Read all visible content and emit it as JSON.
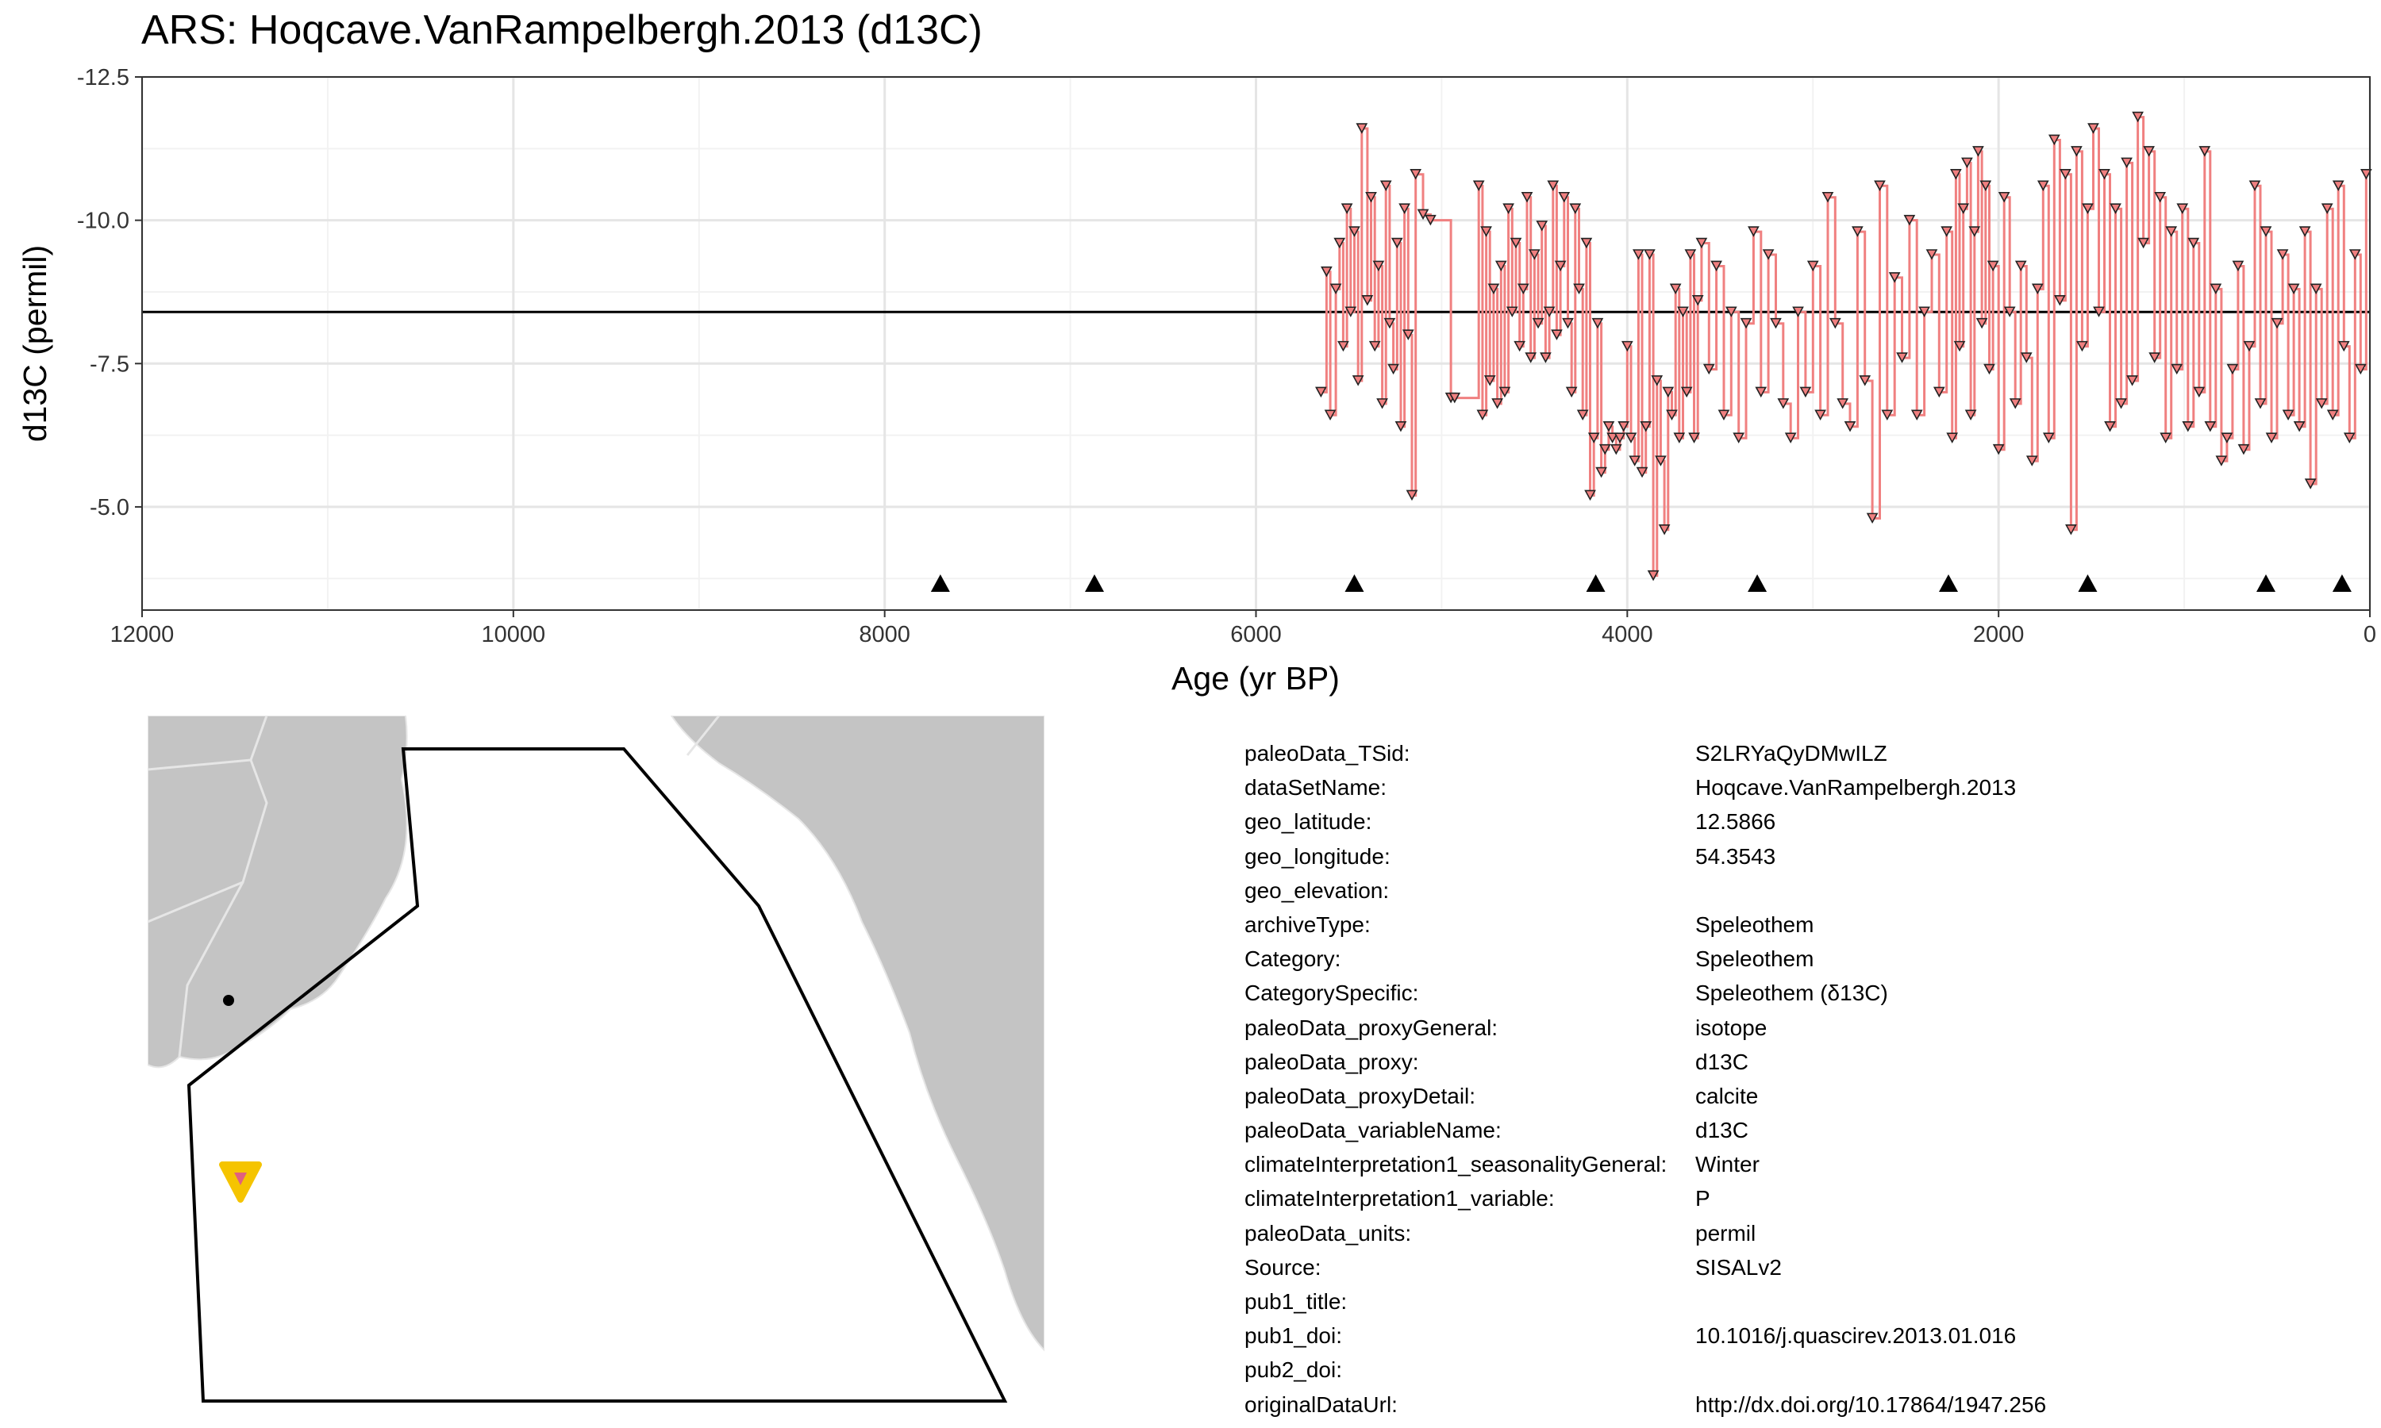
{
  "title": "ARS: Hoqcave.VanRampelbergh.2013 (d13C)",
  "chart_data": {
    "type": "line",
    "title": "ARS: Hoqcave.VanRampelbergh.2013 (d13C)",
    "xlabel": "Age (yr BP)",
    "ylabel": "d13C (permil)",
    "x_reversed": true,
    "y_reversed": true,
    "xlim": [
      12000,
      0
    ],
    "ylim": [
      -12.5,
      -3.2
    ],
    "x_ticks": [
      12000,
      10000,
      8000,
      6000,
      4000,
      2000,
      0
    ],
    "x_tick_labels": [
      "12000",
      "10000",
      "8000",
      "6000",
      "4000",
      "2000",
      "0"
    ],
    "y_ticks": [
      -12.5,
      -10.0,
      -7.5,
      -5.0
    ],
    "y_tick_labels": [
      "-12.5",
      "-10.0",
      "-7.5",
      "-5.0"
    ],
    "grid": true,
    "line_color": "#F08080",
    "marker": "triangle-down",
    "reference_line_y": -8.4,
    "chron_markers_x": [
      7700,
      6870,
      5470,
      4170,
      3300,
      2270,
      1520,
      560,
      150
    ],
    "series": [
      {
        "x": [
          5650,
          5620,
          5600,
          5570,
          5550,
          5530,
          5510,
          5490,
          5470,
          5450,
          5430,
          5400,
          5380,
          5360,
          5340,
          5320,
          5300,
          5280,
          5260,
          5240,
          5220,
          5200,
          5180,
          5160,
          5140,
          5100,
          5060,
          4950,
          4930,
          4800,
          4780,
          4760,
          4740,
          4720,
          4700,
          4680,
          4660,
          4640,
          4620,
          4600,
          4580,
          4560,
          4540,
          4520,
          4500,
          4480,
          4460,
          4440,
          4420,
          4400,
          4380,
          4360,
          4340,
          4320,
          4300,
          4280,
          4260,
          4240,
          4220,
          4200,
          4180,
          4160,
          4140,
          4120,
          4100,
          4080,
          4060,
          4040,
          4020,
          4000,
          3980,
          3960,
          3940,
          3920,
          3900,
          3880,
          3860,
          3840,
          3820,
          3800,
          3780,
          3760,
          3740,
          3720,
          3700,
          3680,
          3660,
          3640,
          3620,
          3600,
          3560,
          3520,
          3480,
          3440,
          3400,
          3360,
          3320,
          3280,
          3240,
          3200,
          3160,
          3120,
          3080,
          3040,
          3000,
          2960,
          2920,
          2880,
          2840,
          2800,
          2760,
          2720,
          2680,
          2640,
          2600,
          2560,
          2520,
          2480,
          2440,
          2400,
          2360,
          2320,
          2280,
          2250,
          2230,
          2210,
          2190,
          2170,
          2150,
          2130,
          2110,
          2090,
          2070,
          2050,
          2030,
          2000,
          1970,
          1940,
          1910,
          1880,
          1850,
          1820,
          1790,
          1760,
          1730,
          1700,
          1670,
          1640,
          1610,
          1580,
          1550,
          1520,
          1490,
          1460,
          1430,
          1400,
          1370,
          1340,
          1310,
          1280,
          1250,
          1220,
          1190,
          1160,
          1130,
          1100,
          1070,
          1040,
          1010,
          980,
          950,
          920,
          890,
          860,
          830,
          800,
          770,
          740,
          710,
          680,
          650,
          620,
          590,
          560,
          530,
          500,
          470,
          440,
          410,
          380,
          350,
          320,
          290,
          260,
          230,
          200,
          170,
          140,
          110,
          80,
          50,
          20
        ],
        "y": [
          -7.0,
          -9.1,
          -6.6,
          -8.8,
          -9.6,
          -7.8,
          -10.2,
          -8.4,
          -9.8,
          -7.2,
          -11.6,
          -8.6,
          -10.4,
          -7.8,
          -9.2,
          -6.8,
          -10.6,
          -8.2,
          -7.4,
          -9.6,
          -6.4,
          -10.2,
          -8.0,
          -5.2,
          -10.8,
          -10.1,
          -10.0,
          -6.9,
          -6.9,
          -10.6,
          -6.6,
          -9.8,
          -7.2,
          -8.8,
          -6.8,
          -9.2,
          -7.0,
          -10.2,
          -8.4,
          -9.6,
          -7.8,
          -8.8,
          -10.4,
          -7.6,
          -9.4,
          -8.2,
          -9.9,
          -7.6,
          -8.4,
          -10.6,
          -8.0,
          -9.2,
          -10.4,
          -8.2,
          -7.0,
          -10.2,
          -8.8,
          -6.6,
          -9.6,
          -5.2,
          -6.2,
          -8.2,
          -5.6,
          -6.0,
          -6.4,
          -6.2,
          -6.0,
          -6.2,
          -6.4,
          -7.8,
          -6.2,
          -5.8,
          -9.4,
          -5.6,
          -6.4,
          -9.4,
          -3.8,
          -7.2,
          -5.8,
          -4.6,
          -7.0,
          -6.6,
          -8.8,
          -6.2,
          -8.4,
          -7.0,
          -9.4,
          -6.2,
          -8.6,
          -9.6,
          -7.4,
          -9.2,
          -6.6,
          -8.4,
          -6.2,
          -8.2,
          -9.8,
          -7.0,
          -9.4,
          -8.2,
          -6.8,
          -6.2,
          -8.4,
          -7.0,
          -9.2,
          -6.6,
          -10.4,
          -8.2,
          -6.8,
          -6.4,
          -9.8,
          -7.2,
          -4.8,
          -10.6,
          -6.6,
          -9.0,
          -7.6,
          -10.0,
          -6.6,
          -8.4,
          -9.4,
          -7.0,
          -9.8,
          -6.2,
          -10.8,
          -7.8,
          -10.2,
          -11.0,
          -6.6,
          -9.8,
          -11.2,
          -8.2,
          -10.6,
          -7.4,
          -9.2,
          -6.0,
          -10.4,
          -8.4,
          -6.8,
          -9.2,
          -7.6,
          -5.8,
          -8.8,
          -10.6,
          -6.2,
          -11.4,
          -8.6,
          -10.8,
          -4.6,
          -11.2,
          -7.8,
          -10.2,
          -11.6,
          -8.4,
          -10.8,
          -6.4,
          -10.2,
          -6.8,
          -11.0,
          -7.2,
          -11.8,
          -9.6,
          -11.2,
          -7.6,
          -10.4,
          -6.2,
          -9.8,
          -7.4,
          -10.2,
          -6.4,
          -9.6,
          -7.0,
          -11.2,
          -6.4,
          -8.8,
          -5.8,
          -6.2,
          -7.4,
          -9.2,
          -6.0,
          -7.8,
          -10.6,
          -6.8,
          -9.8,
          -6.2,
          -8.2,
          -9.4,
          -6.6,
          -8.8,
          -6.4,
          -9.8,
          -5.4,
          -8.8,
          -6.8,
          -10.2,
          -6.6,
          -10.6,
          -7.8,
          -6.2,
          -9.4,
          -7.4,
          -10.8
        ]
      }
    ]
  },
  "metadata": [
    {
      "key": "paleoData_TSid:",
      "value": "S2LRYaQyDMwILZ"
    },
    {
      "key": "dataSetName:",
      "value": "Hoqcave.VanRampelbergh.2013"
    },
    {
      "key": "geo_latitude:",
      "value": "12.5866"
    },
    {
      "key": "geo_longitude:",
      "value": "54.3543"
    },
    {
      "key": "geo_elevation:",
      "value": ""
    },
    {
      "key": "archiveType:",
      "value": "Speleothem"
    },
    {
      "key": "Category:",
      "value": "Speleothem"
    },
    {
      "key": "CategorySpecific:",
      "value": "Speleothem (δ13C)"
    },
    {
      "key": "paleoData_proxyGeneral:",
      "value": "isotope"
    },
    {
      "key": "paleoData_proxy:",
      "value": "d13C"
    },
    {
      "key": "paleoData_proxyDetail:",
      "value": "calcite"
    },
    {
      "key": "paleoData_variableName:",
      "value": "d13C"
    },
    {
      "key": "climateInterpretation1_seasonalityGeneral:",
      "value": "Winter"
    },
    {
      "key": "climateInterpretation1_variable:",
      "value": "P"
    },
    {
      "key": "paleoData_units:",
      "value": "permil"
    },
    {
      "key": "Source:",
      "value": "SISALv2"
    },
    {
      "key": "pub1_title:",
      "value": ""
    },
    {
      "key": "pub1_doi:",
      "value": "10.1016/j.quascirev.2013.01.016"
    },
    {
      "key": "pub2_doi:",
      "value": ""
    },
    {
      "key": "originalDataUrl:",
      "value": "http://dx.doi.org/10.17864/1947.256"
    }
  ],
  "map": {
    "land_color": "#C4C4C4",
    "site_marker_color": "#F5C400",
    "site_marker_inner_color": "#E06080"
  }
}
